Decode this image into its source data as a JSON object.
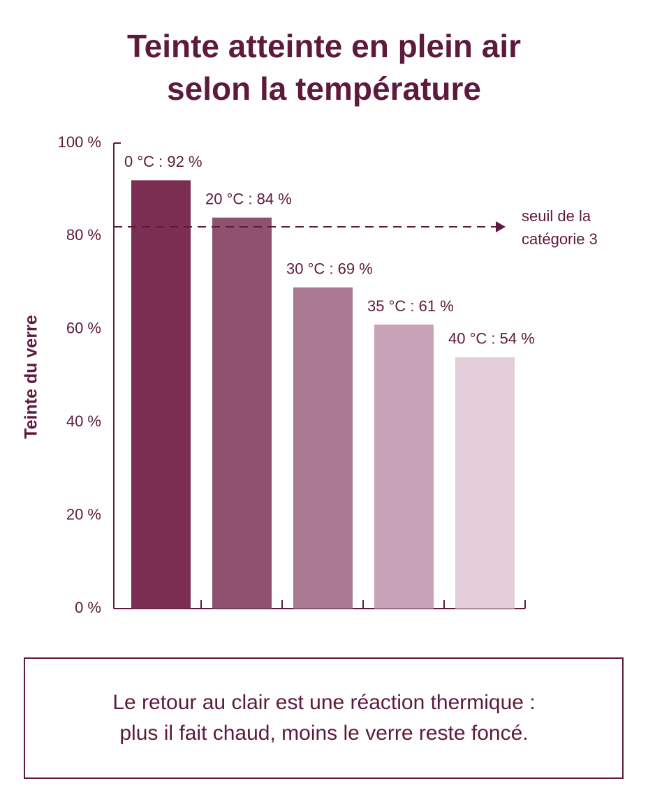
{
  "chart_data": {
    "type": "bar",
    "title": [
      "Teinte atteinte en plein air",
      "selon la température"
    ],
    "y_label": "Teinte du verre",
    "categories": [
      null,
      null,
      null,
      null,
      null
    ],
    "values": [
      92,
      84,
      69,
      61,
      54
    ],
    "value_labels": [
      "0 °C : 92 %",
      "20 °C : 84 %",
      "30 °C : 69 %",
      "35 °C : 61 %",
      "40 °C : 54 %"
    ],
    "colors": [
      "#7b2d52",
      "#8e5270",
      "#a97892",
      "#c8a2b6",
      "#e2cdd8"
    ],
    "ylim": [
      0,
      100
    ],
    "yticks": [
      {
        "value": 0,
        "label": "0 %"
      },
      {
        "value": 20,
        "label": "20 %"
      },
      {
        "value": 40,
        "label": "40 %"
      },
      {
        "value": 60,
        "label": "60 %"
      },
      {
        "value": 80,
        "label": "80 %"
      },
      {
        "value": 100,
        "label": "100 %"
      }
    ],
    "threshold": {
      "value": 82,
      "label": [
        "seuil de la",
        "catégorie 3"
      ]
    },
    "caption": [
      "Le retour au clair est une réaction thermique :",
      "plus il fait chaud, moins le verre reste foncé."
    ]
  }
}
